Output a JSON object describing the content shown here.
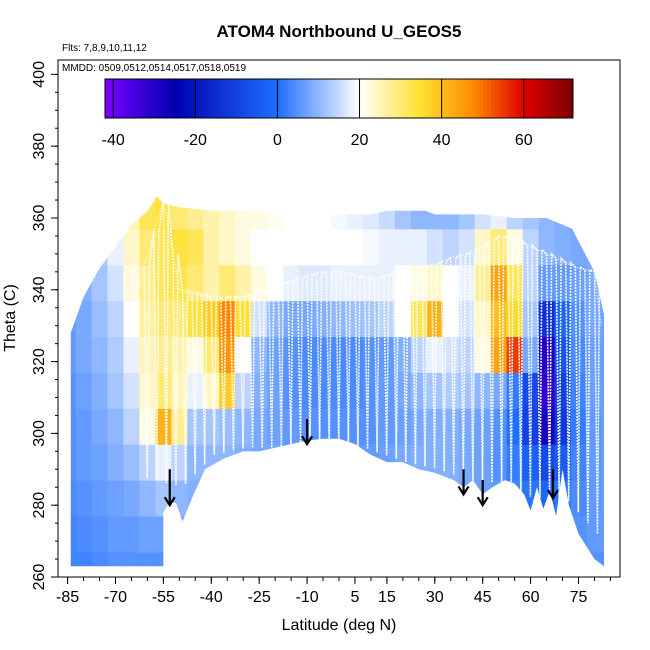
{
  "chart_data": {
    "type": "heatmap",
    "title": "ATOM4 Northbound U_GEOS5",
    "flights_note": "Flts: 7,8,9,10,11,12",
    "dates_note": "MMDD: 0509,0512,0514,0517,0518,0519",
    "xlabel": "Latitude (deg N)",
    "ylabel": "Theta (C)",
    "xlim": [
      -88,
      88
    ],
    "ylim": [
      260,
      404
    ],
    "x_ticks": [
      -85,
      -70,
      -55,
      -40,
      -25,
      -10,
      5,
      15,
      30,
      45,
      60,
      75
    ],
    "x_tick_labels": [
      "-85",
      "-70",
      "-55",
      "-40",
      "-25",
      "-10",
      "5",
      "15",
      "30",
      "45",
      "60",
      "75"
    ],
    "y_ticks": [
      260,
      280,
      300,
      320,
      340,
      360,
      380,
      400
    ],
    "y_tick_labels": [
      "260",
      "280",
      "300",
      "320",
      "340",
      "360",
      "380",
      "400"
    ],
    "colorbar": {
      "min": -42,
      "max": 72,
      "ticks": [
        -40,
        -20,
        0,
        20,
        40,
        60
      ],
      "tick_labels": [
        "-40",
        "-20",
        "0",
        "20",
        "40",
        "60"
      ],
      "colors": [
        "#7a00ff",
        "#0000b0",
        "#1e6eff",
        "#ffffff",
        "#ffe030",
        "#ff8800",
        "#e00000",
        "#7a0000"
      ],
      "color_stops": [
        -42,
        -25,
        0,
        20,
        35,
        48,
        60,
        72
      ]
    },
    "wind_field": {
      "lat": [
        -85,
        -80,
        -75,
        -70,
        -65,
        -60,
        -55,
        -50,
        -45,
        -40,
        -35,
        -30,
        -25,
        -20,
        -15,
        -10,
        -5,
        0,
        5,
        10,
        15,
        20,
        25,
        30,
        35,
        40,
        45,
        50,
        55,
        60,
        65,
        70,
        75,
        80,
        85
      ],
      "theta": [
        262,
        272,
        282,
        292,
        302,
        312,
        322,
        332,
        342,
        352,
        362
      ],
      "u_ms": [
        [
          3,
          3,
          4,
          5,
          5,
          5,
          5,
          5,
          5,
          6,
          6,
          6,
          6,
          6,
          6,
          6,
          5,
          5,
          5,
          5,
          5,
          6,
          6,
          6,
          6,
          6,
          5,
          5,
          4,
          4,
          3,
          4,
          5,
          5,
          5
        ],
        [
          3,
          4,
          5,
          6,
          6,
          7,
          7,
          7,
          8,
          8,
          8,
          8,
          8,
          8,
          8,
          8,
          7,
          7,
          7,
          7,
          7,
          8,
          8,
          8,
          8,
          8,
          7,
          6,
          4,
          3,
          2,
          3,
          5,
          6,
          6
        ],
        [
          4,
          5,
          6,
          7,
          8,
          10,
          12,
          10,
          9,
          9,
          9,
          9,
          8,
          8,
          8,
          7,
          7,
          7,
          7,
          7,
          7,
          8,
          8,
          9,
          9,
          8,
          7,
          6,
          3,
          1,
          -2,
          1,
          4,
          6,
          7
        ],
        [
          5,
          6,
          7,
          9,
          11,
          14,
          18,
          14,
          10,
          10,
          10,
          9,
          8,
          8,
          7,
          6,
          6,
          6,
          6,
          6,
          7,
          8,
          9,
          9,
          9,
          8,
          7,
          5,
          2,
          -3,
          -8,
          -4,
          3,
          6,
          7
        ],
        [
          5,
          6,
          8,
          10,
          14,
          22,
          42,
          28,
          12,
          12,
          11,
          10,
          8,
          7,
          6,
          5,
          5,
          5,
          5,
          5,
          6,
          7,
          8,
          9,
          9,
          8,
          7,
          5,
          0,
          -10,
          -28,
          -12,
          2,
          6,
          7
        ],
        [
          5,
          7,
          9,
          12,
          16,
          24,
          30,
          25,
          18,
          24,
          38,
          14,
          9,
          7,
          5,
          4,
          4,
          4,
          4,
          5,
          6,
          8,
          10,
          12,
          13,
          12,
          10,
          8,
          2,
          -8,
          -32,
          -10,
          3,
          7,
          7
        ],
        [
          6,
          8,
          10,
          13,
          18,
          25,
          28,
          26,
          22,
          30,
          46,
          20,
          10,
          7,
          5,
          4,
          4,
          4,
          4,
          5,
          6,
          9,
          14,
          18,
          16,
          14,
          22,
          44,
          55,
          8,
          -30,
          -6,
          4,
          7,
          7
        ],
        [
          6,
          8,
          11,
          14,
          20,
          27,
          30,
          30,
          34,
          38,
          48,
          35,
          16,
          10,
          8,
          8,
          9,
          10,
          11,
          12,
          14,
          20,
          32,
          42,
          20,
          16,
          24,
          40,
          36,
          12,
          -14,
          -2,
          5,
          8,
          7
        ],
        [
          6,
          9,
          12,
          16,
          22,
          28,
          32,
          33,
          30,
          26,
          30,
          26,
          22,
          20,
          18,
          17,
          17,
          18,
          18,
          18,
          18,
          20,
          22,
          24,
          20,
          18,
          28,
          44,
          32,
          14,
          6,
          6,
          7,
          8,
          7
        ],
        [
          6,
          9,
          13,
          18,
          24,
          30,
          32,
          34,
          32,
          26,
          24,
          22,
          20,
          20,
          20,
          20,
          20,
          20,
          20,
          19,
          18,
          18,
          18,
          16,
          14,
          16,
          24,
          30,
          22,
          14,
          10,
          9,
          8,
          8,
          7
        ],
        [
          7,
          10,
          14,
          20,
          26,
          32,
          34,
          30,
          28,
          26,
          24,
          22,
          22,
          21,
          20,
          20,
          20,
          19,
          18,
          17,
          15,
          12,
          10,
          10,
          10,
          12,
          16,
          18,
          14,
          12,
          10,
          9,
          8,
          8,
          7
        ]
      ]
    },
    "data_domain": {
      "bottom_theta": [
        [
          -84,
          263
        ],
        [
          -55,
          263
        ],
        [
          -55,
          278
        ],
        [
          -53,
          281
        ],
        [
          -51,
          280.5
        ],
        [
          -49,
          275.5
        ],
        [
          -46,
          282
        ],
        [
          -42,
          290
        ],
        [
          -36,
          293
        ],
        [
          -30,
          295
        ],
        [
          -25,
          295
        ],
        [
          -20,
          296
        ],
        [
          -15,
          297
        ],
        [
          -10,
          298
        ],
        [
          -5,
          298.5
        ],
        [
          0,
          298.5
        ],
        [
          5,
          297
        ],
        [
          10,
          294
        ],
        [
          15,
          292
        ],
        [
          20,
          292
        ],
        [
          25,
          290
        ],
        [
          30,
          289
        ],
        [
          36,
          287
        ],
        [
          39,
          285
        ],
        [
          42,
          287
        ],
        [
          45,
          283
        ],
        [
          48,
          285
        ],
        [
          52,
          287
        ],
        [
          55,
          286
        ],
        [
          58,
          283
        ],
        [
          60,
          278.5
        ],
        [
          62,
          285
        ],
        [
          64,
          279
        ],
        [
          66,
          284
        ],
        [
          68,
          277
        ],
        [
          70,
          290
        ],
        [
          72,
          280
        ],
        [
          75,
          272
        ],
        [
          80,
          265
        ],
        [
          83,
          263
        ]
      ],
      "top_theta": [
        [
          -84,
          328
        ],
        [
          -80,
          338
        ],
        [
          -75,
          346
        ],
        [
          -70,
          352
        ],
        [
          -65,
          358
        ],
        [
          -60,
          362
        ],
        [
          -57,
          366
        ],
        [
          -55,
          364
        ],
        [
          -50,
          363
        ],
        [
          -40,
          362
        ],
        [
          -30,
          362
        ],
        [
          -15,
          361
        ],
        [
          0,
          361
        ],
        [
          10,
          361
        ],
        [
          15,
          362
        ],
        [
          20,
          362
        ],
        [
          27,
          362
        ],
        [
          30,
          361
        ],
        [
          45,
          361
        ],
        [
          55,
          360
        ],
        [
          65,
          360
        ],
        [
          73,
          357
        ],
        [
          80,
          345
        ],
        [
          83,
          333
        ]
      ]
    },
    "flight_traces": {
      "theta_floor": [
        [
          -63,
          288
        ],
        [
          -50,
          285
        ],
        [
          -40,
          294
        ],
        [
          -30,
          296
        ],
        [
          -20,
          296
        ],
        [
          -10,
          298
        ],
        [
          0,
          298
        ],
        [
          10,
          295
        ],
        [
          20,
          292
        ],
        [
          30,
          290
        ],
        [
          40,
          287
        ],
        [
          50,
          286
        ],
        [
          60,
          282
        ],
        [
          70,
          282
        ],
        [
          80,
          272
        ]
      ],
      "theta_ceiling": [
        [
          -63,
          340
        ],
        [
          -58,
          356
        ],
        [
          -55,
          365
        ],
        [
          -50,
          340
        ],
        [
          -40,
          338
        ],
        [
          -30,
          338
        ],
        [
          -20,
          341
        ],
        [
          -10,
          344
        ],
        [
          -5,
          345
        ],
        [
          0,
          345
        ],
        [
          5,
          344
        ],
        [
          10,
          343
        ],
        [
          15,
          344
        ],
        [
          20,
          346
        ],
        [
          25,
          346
        ],
        [
          30,
          347
        ],
        [
          35,
          349
        ],
        [
          40,
          350
        ],
        [
          45,
          352
        ],
        [
          50,
          355
        ],
        [
          55,
          354
        ],
        [
          60,
          352
        ],
        [
          65,
          350
        ],
        [
          70,
          348
        ],
        [
          75,
          346
        ],
        [
          80,
          345
        ],
        [
          82,
          330
        ]
      ],
      "dive_latitudes": [
        -61,
        -58,
        -55,
        -52,
        -49,
        -46,
        -43,
        -40,
        -37,
        -34,
        -31,
        -28,
        -25,
        -22,
        -19,
        -16,
        -13,
        -10,
        -7,
        -4,
        -1,
        2,
        5,
        8,
        11,
        14,
        17,
        20,
        23,
        26,
        29,
        32,
        35,
        38,
        41,
        44,
        47,
        50,
        53,
        56,
        59,
        62,
        65,
        68,
        71,
        74,
        77,
        80
      ]
    },
    "arrows": [
      {
        "lat": -53,
        "theta_top": 290,
        "theta_tip": 280
      },
      {
        "lat": -10,
        "theta_top": 304,
        "theta_tip": 297
      },
      {
        "lat": 39,
        "theta_top": 290,
        "theta_tip": 283
      },
      {
        "lat": 45,
        "theta_top": 287,
        "theta_tip": 280
      },
      {
        "lat": 67,
        "theta_top": 290,
        "theta_tip": 282
      }
    ]
  }
}
